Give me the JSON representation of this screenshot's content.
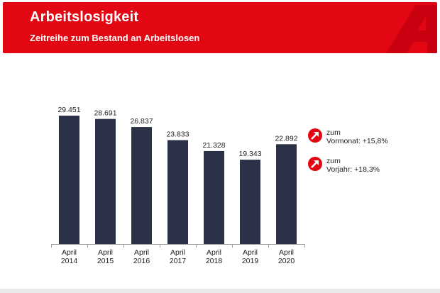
{
  "header": {
    "title": "Arbeitslosigkeit",
    "subtitle": "Zeitreihe zum Bestand an Arbeitslosen"
  },
  "colors": {
    "brand_red": "#e30613",
    "bar": "#2b3147",
    "axis": "#a0a0a0"
  },
  "chart_data": {
    "type": "bar",
    "title": "Zeitreihe zum Bestand an Arbeitslosen",
    "categories": [
      [
        "April",
        "2014"
      ],
      [
        "April",
        "2015"
      ],
      [
        "April",
        "2016"
      ],
      [
        "April",
        "2017"
      ],
      [
        "April",
        "2018"
      ],
      [
        "April",
        "2019"
      ],
      [
        "April",
        "2020"
      ]
    ],
    "values": [
      29451,
      28691,
      26837,
      23833,
      21328,
      19343,
      22892
    ],
    "value_labels": [
      "29.451",
      "28.691",
      "26.837",
      "23.833",
      "21.328",
      "19.343",
      "22.892"
    ],
    "ylim": [
      0,
      30000
    ],
    "xlabel": "",
    "ylabel": "",
    "grid": false
  },
  "indicators": [
    {
      "icon": "arrow-up-right-icon",
      "line1": "zum",
      "line2": "Vormonat: +15,8%"
    },
    {
      "icon": "arrow-up-right-icon",
      "line1": "zum",
      "line2": "Vorjahr: +18,3%"
    }
  ]
}
